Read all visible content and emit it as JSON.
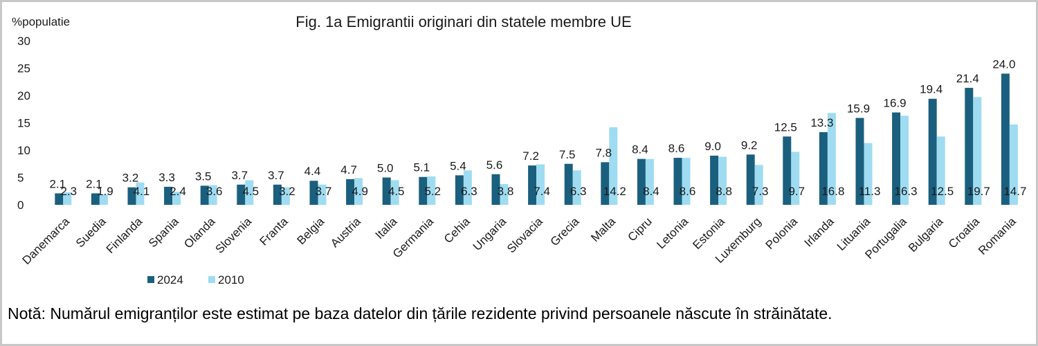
{
  "colors": {
    "series_2024": "#1b5f7e",
    "series_2010": "#9fdcf2",
    "text": "#1a1a1a"
  },
  "note": "Notă: Numărul emigranților este estimat pe baza datelor din țările rezidente privind persoanele născute în străinătate.",
  "chart_data": {
    "type": "bar",
    "title": "Fig. 1a Emigrantii originari din statele membre UE",
    "ylabel": "%populatie",
    "xlabel": "",
    "ylim": [
      0,
      30
    ],
    "yticks": [
      0,
      5,
      10,
      15,
      20,
      25,
      30
    ],
    "grid": false,
    "legend_position": "bottom-left",
    "categories": [
      "Danemarca",
      "Suedia",
      "Finlanda",
      "Spania",
      "Olanda",
      "Slovenia",
      "Franta",
      "Belgia",
      "Austria",
      "Italia",
      "Germania",
      "Cehia",
      "Ungaria",
      "Slovacia",
      "Grecia",
      "Malta",
      "Cipru",
      "Letonia",
      "Estonia",
      "Luxemburg",
      "Polonia",
      "Irlanda",
      "Lituania",
      "Portugalia",
      "Bulgaria",
      "Croatia",
      "Romania"
    ],
    "series": [
      {
        "name": "2024",
        "values": [
          2.1,
          2.1,
          3.2,
          3.3,
          3.5,
          3.7,
          3.7,
          4.4,
          4.7,
          5.0,
          5.1,
          5.4,
          5.6,
          7.2,
          7.5,
          7.8,
          8.4,
          8.6,
          9.0,
          9.2,
          12.5,
          13.3,
          15.9,
          16.9,
          19.4,
          21.4,
          24.0
        ],
        "labels": [
          "2.1",
          "2.1",
          "3.2",
          "3.3",
          "3.5",
          "3.7",
          "3.7",
          "4.4",
          "4.7",
          "5.0",
          "5.1",
          "5.4",
          "5.6",
          "7.2",
          "7.5",
          "7.8",
          "8.4",
          "8.6",
          "9.0",
          "9.2",
          "12.5",
          "13.3",
          "15.9",
          "16.9",
          "19.4",
          "21.4",
          "24.0"
        ]
      },
      {
        "name": "2010",
        "values": [
          2.3,
          1.9,
          4.1,
          2.4,
          3.6,
          4.5,
          3.2,
          3.7,
          4.9,
          4.5,
          5.2,
          6.3,
          3.8,
          7.4,
          6.3,
          14.2,
          8.4,
          8.6,
          8.8,
          7.3,
          9.7,
          16.8,
          11.3,
          16.3,
          12.5,
          19.7,
          14.7
        ],
        "labels": [
          "2.3",
          "1.9",
          "4.1",
          "2.4",
          "3.6",
          "4.5",
          "3.2",
          "3.7",
          "4.9",
          "4.5",
          "5.2",
          "6.3",
          "3.8",
          "7.4",
          "6.3",
          "14.2",
          "8.4",
          "8.6",
          "8.8",
          "7.3",
          "9.7",
          "16.8",
          "11.3",
          "16.3",
          "12.5",
          "19.7",
          "14.7"
        ]
      }
    ]
  }
}
